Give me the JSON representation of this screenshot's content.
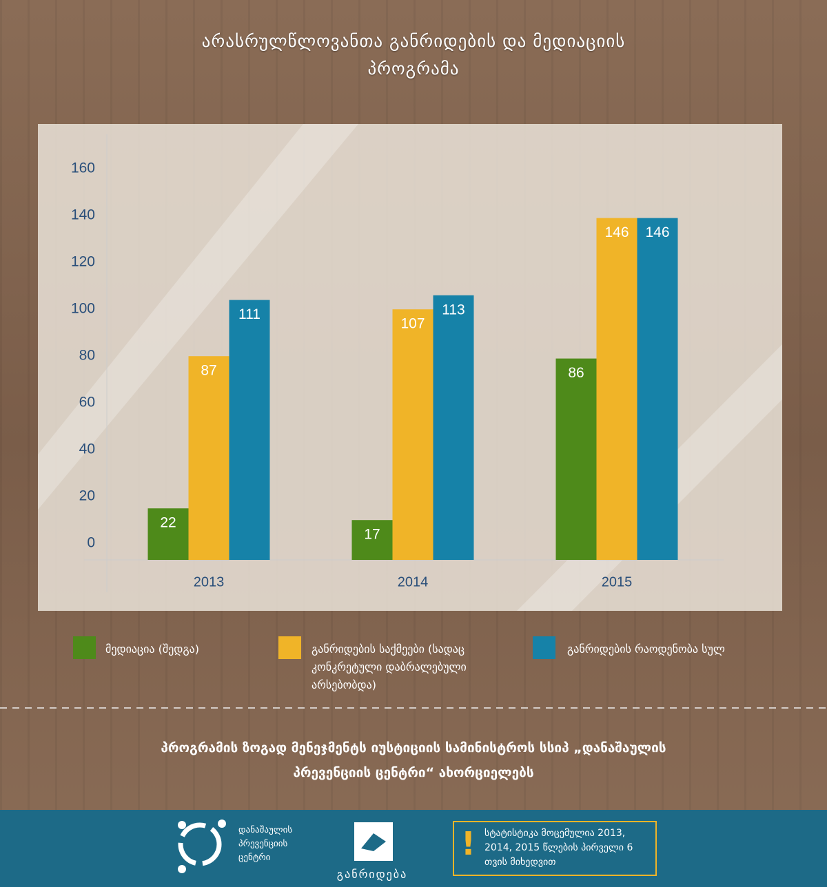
{
  "chart_data": {
    "type": "bar",
    "title": "არასრულწლოვანთა განრიდების და მედიაციის პროგრამა",
    "categories": [
      "2013",
      "2014",
      "2015"
    ],
    "series": [
      {
        "name": "მედიაცია (შედგა)",
        "color": "#4e8a1a",
        "values": [
          22,
          17,
          86
        ]
      },
      {
        "name": "განრიდების საქმეები (სადაც კონკრეტული დაბრალებული არსებობდა)",
        "color": "#f0b428",
        "values": [
          87,
          107,
          146
        ]
      },
      {
        "name": "განრიდების რაოდენობა სულ",
        "color": "#1682a8",
        "values": [
          111,
          113,
          146
        ]
      }
    ],
    "ylim": [
      0,
      160
    ],
    "yticks": [
      0,
      20,
      40,
      60,
      80,
      100,
      120,
      140,
      160
    ],
    "grid": false
  },
  "footer": {
    "text": "პროგრამის ზოგად მენეჯმენტს იუსტიციის სამინისტროს სსიპ „დანაშაულის პრევენციის ცენტრი“ ახორციელებს"
  },
  "logos": {
    "crime_prevention": "დანაშაულის პრევენციის ცენტრი",
    "diversion": "განრიდება"
  },
  "notice": {
    "icon": "!",
    "text": "სტატისტიკა მოცემულია 2013, 2014, 2015 წლების პირველი 6 თვის მიხედვით"
  }
}
